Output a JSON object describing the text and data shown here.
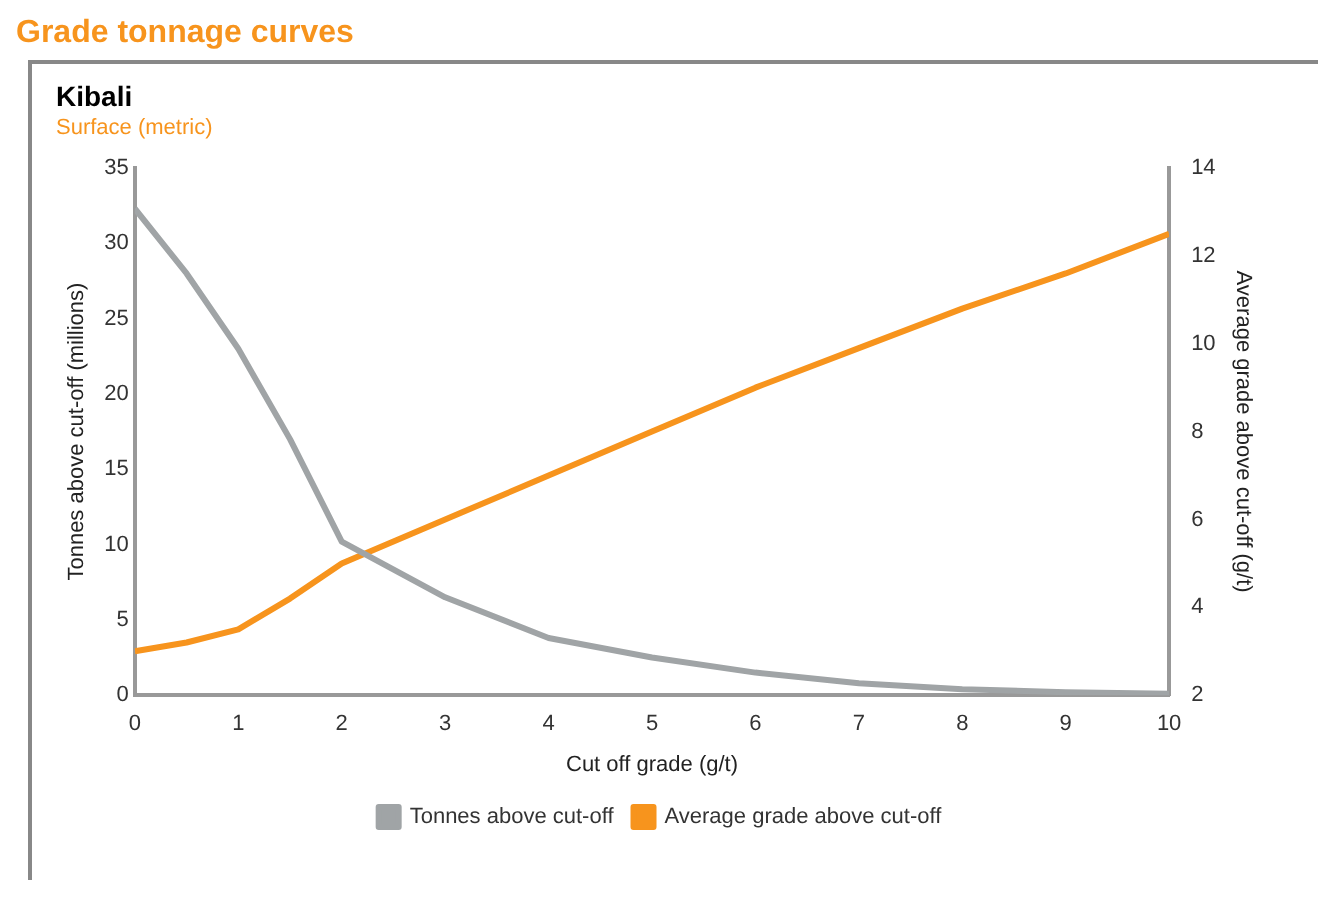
{
  "chart_data": {
    "type": "line",
    "title": "Grade tonnage curves",
    "subtitle": "Kibali",
    "annotations": [
      "Surface (metric)"
    ],
    "x": [
      0,
      0.5,
      1,
      1.5,
      2,
      3,
      4,
      5,
      6,
      7,
      8,
      9,
      10
    ],
    "xlim": [
      0,
      10
    ],
    "xticks": [
      0,
      1,
      2,
      3,
      4,
      5,
      6,
      7,
      8,
      9,
      10
    ],
    "xlabel": "Cut off grade (g/t)",
    "ylim": [
      0,
      35
    ],
    "yticks": [
      0,
      5,
      10,
      15,
      20,
      25,
      30,
      35
    ],
    "ylabel": "Tonnes above cut-off (millions)",
    "y2lim": [
      2,
      14
    ],
    "y2ticks": [
      2,
      4,
      6,
      8,
      10,
      12,
      14
    ],
    "y2label": "Average grade above cut-off (g/t)",
    "series": [
      {
        "name": "Tonnes above cut-off",
        "color": "#a0a4a6",
        "values": [
          32.3,
          28,
          23,
          17,
          10.2,
          6.5,
          3.8,
          2.5,
          1.5,
          0.8,
          0.4,
          0.2,
          0.1
        ]
      },
      {
        "name": "Average grade above cut-off",
        "color": "#f7941d",
        "axis": "y2",
        "values": [
          3.0,
          3.2,
          3.5,
          4.2,
          5.0,
          6.0,
          7.0,
          8.0,
          9.0,
          9.9,
          10.8,
          11.6,
          12.5
        ]
      }
    ],
    "legend": "bottom",
    "grid": false,
    "marker": "none",
    "line_style": "solid"
  }
}
